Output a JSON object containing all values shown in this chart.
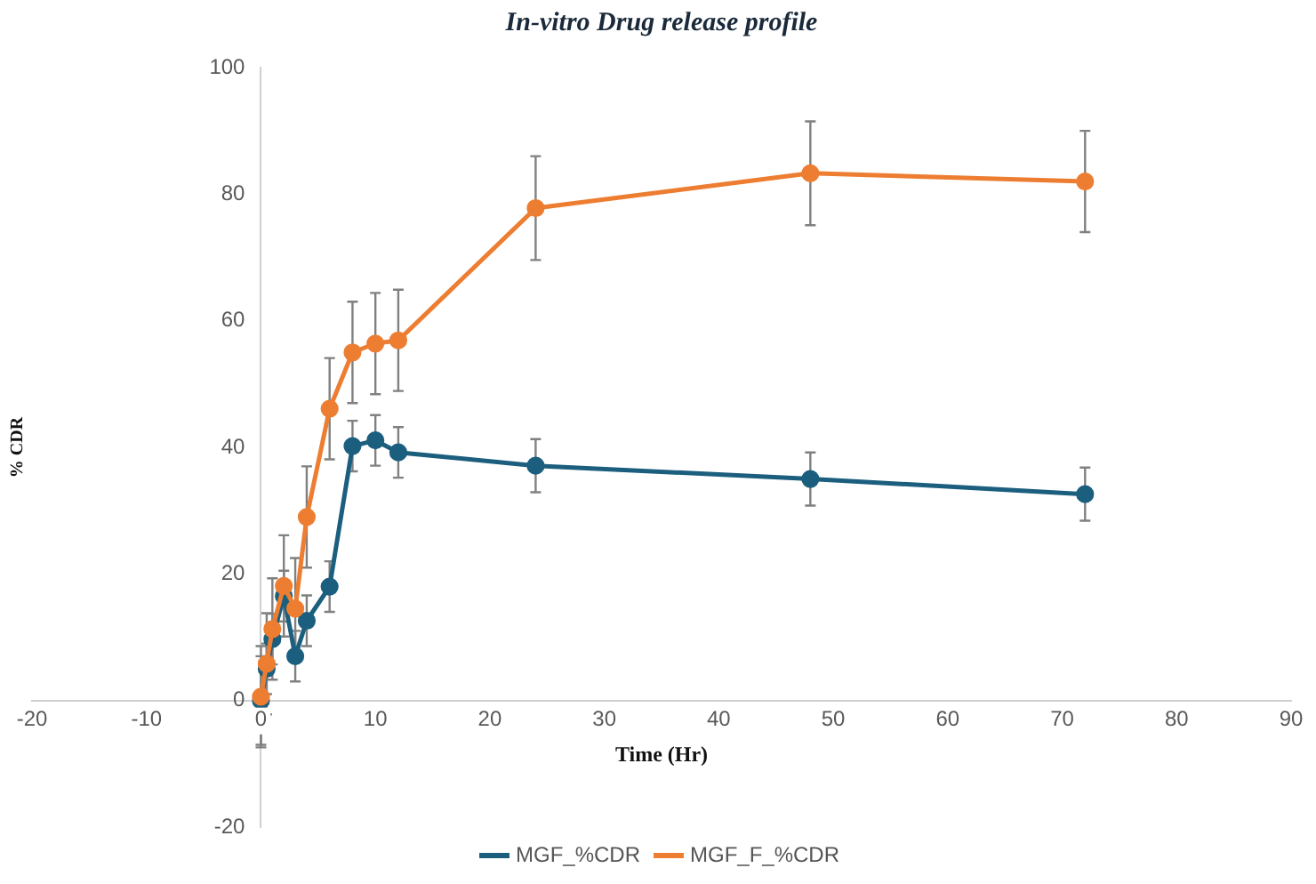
{
  "chart_data": {
    "type": "line",
    "title": "In-vitro Drug release profile",
    "xlabel": "Time (Hr)",
    "ylabel": "% CDR",
    "xlim": [
      -20,
      90
    ],
    "xticks": [
      -20,
      -10,
      0,
      10,
      20,
      30,
      40,
      50,
      60,
      70,
      80,
      90
    ],
    "ylim": [
      -20,
      100
    ],
    "yticks": [
      -20,
      0,
      20,
      40,
      60,
      80,
      100
    ],
    "x": [
      0,
      0.5,
      1,
      2,
      3,
      4,
      6,
      8,
      10,
      12,
      24,
      48,
      72
    ],
    "grid": false,
    "legend": "bottom",
    "marker": "circle",
    "line_style": "solid",
    "series": [
      {
        "name": "MGF_%CDR",
        "color": "#1b5e7e",
        "values": [
          0,
          5,
          9.7,
          16.5,
          7,
          12.6,
          18,
          40.2,
          41.1,
          39.2,
          37.1,
          35,
          32.6
        ],
        "errors": [
          7,
          4,
          4,
          4,
          4,
          4,
          4,
          4,
          4,
          4,
          4.2,
          4.2,
          4.2
        ]
      },
      {
        "name": "MGF_F_%CDR",
        "color": "#ed7d31",
        "values": [
          0.6,
          5.8,
          11.3,
          18.1,
          14.5,
          29,
          46.1,
          55,
          56.4,
          56.9,
          77.8,
          83.3,
          82
        ],
        "errors": [
          8,
          8,
          8,
          8,
          8,
          8,
          8,
          8,
          8,
          8,
          8.2,
          8.2,
          8
        ]
      }
    ]
  }
}
